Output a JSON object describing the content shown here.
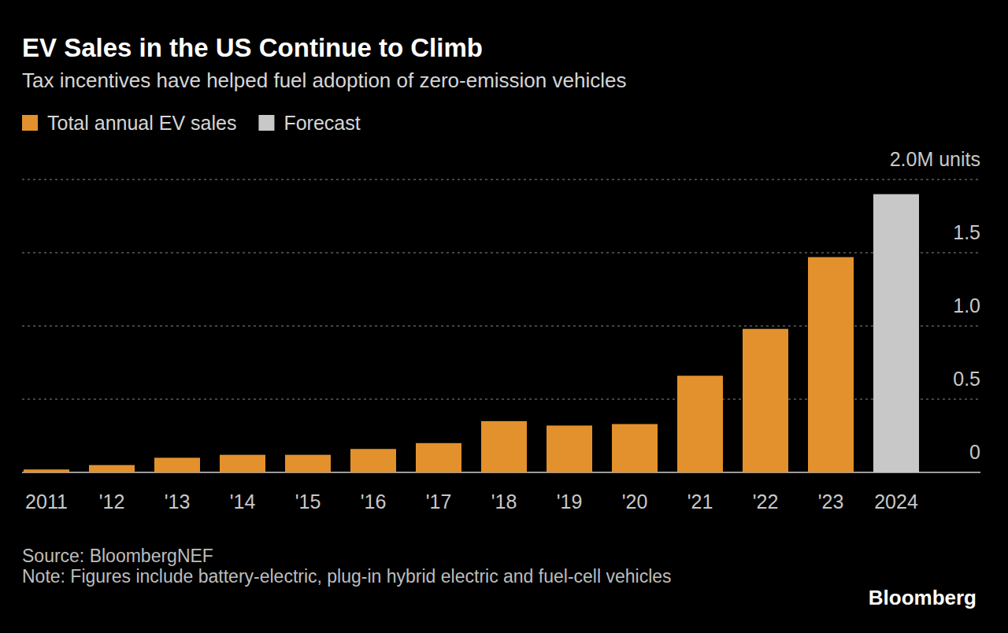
{
  "chart_data": {
    "type": "bar",
    "title": "EV Sales in the US Continue to Climb",
    "subtitle": "Tax incentives have helped fuel adoption of zero-emission vehicles",
    "categories": [
      "2011",
      "'12",
      "'13",
      "'14",
      "'15",
      "'16",
      "'17",
      "'18",
      "'19",
      "'20",
      "'21",
      "'22",
      "'23",
      "2024"
    ],
    "series": [
      {
        "name": "Total annual EV sales",
        "color": "#e3912c",
        "values": [
          0.02,
          0.05,
          0.1,
          0.12,
          0.12,
          0.16,
          0.2,
          0.35,
          0.32,
          0.33,
          0.66,
          0.98,
          1.47,
          null
        ]
      },
      {
        "name": "Forecast",
        "color": "#c8c8c8",
        "values": [
          null,
          null,
          null,
          null,
          null,
          null,
          null,
          null,
          null,
          null,
          null,
          null,
          null,
          1.9
        ]
      }
    ],
    "ylim": [
      0,
      2.0
    ],
    "yticks": [
      0,
      0.5,
      {
        "value": 1.0,
        "label": "1.0"
      },
      1.5,
      {
        "value": 2.0,
        "label": "2.0M units"
      }
    ],
    "grid": true,
    "legend": "top-left",
    "source": "Source: BloombergNEF",
    "note": "Note: Figures include battery-electric, plug-in hybrid electric and fuel-cell vehicles",
    "credit": "Bloomberg"
  }
}
